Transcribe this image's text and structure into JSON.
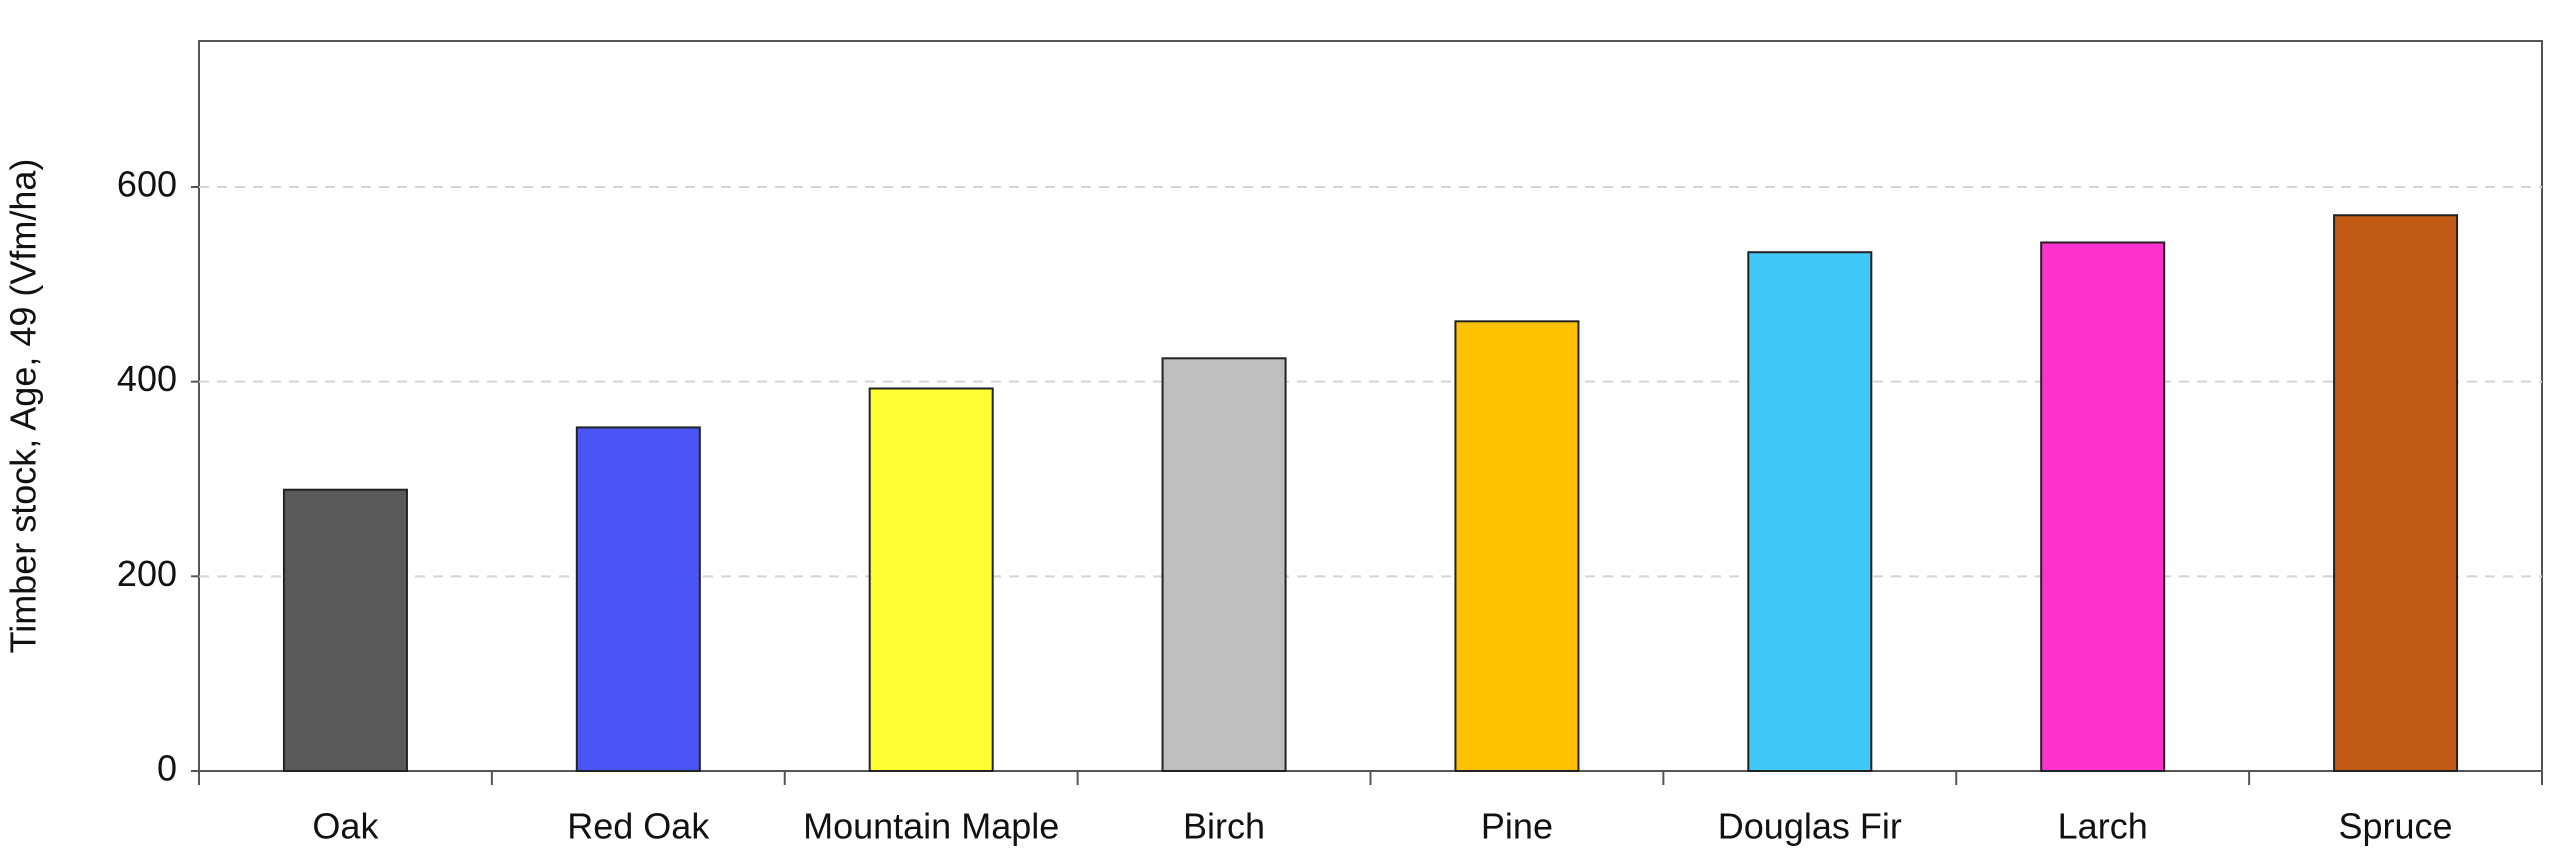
{
  "chart_data": {
    "type": "bar",
    "y_label": "Timber stock, Age, 49 (Vfm/ha)",
    "categories": [
      "Oak",
      "Red Oak",
      "Mountain Maple",
      "Birch",
      "Pine",
      "Douglas Fir",
      "Larch",
      "Spruce"
    ],
    "values": [
      289,
      353,
      393,
      424,
      462,
      533,
      543,
      571
    ],
    "colors": [
      "#595959",
      "#4a55f5",
      "#ffff33",
      "#bfbfbf",
      "#ffc000",
      "#40c8f8",
      "#ff33cc",
      "#c05a14"
    ],
    "ylim": [
      0,
      750
    ],
    "yticks": [
      0,
      200,
      400,
      600
    ],
    "grid": true
  }
}
